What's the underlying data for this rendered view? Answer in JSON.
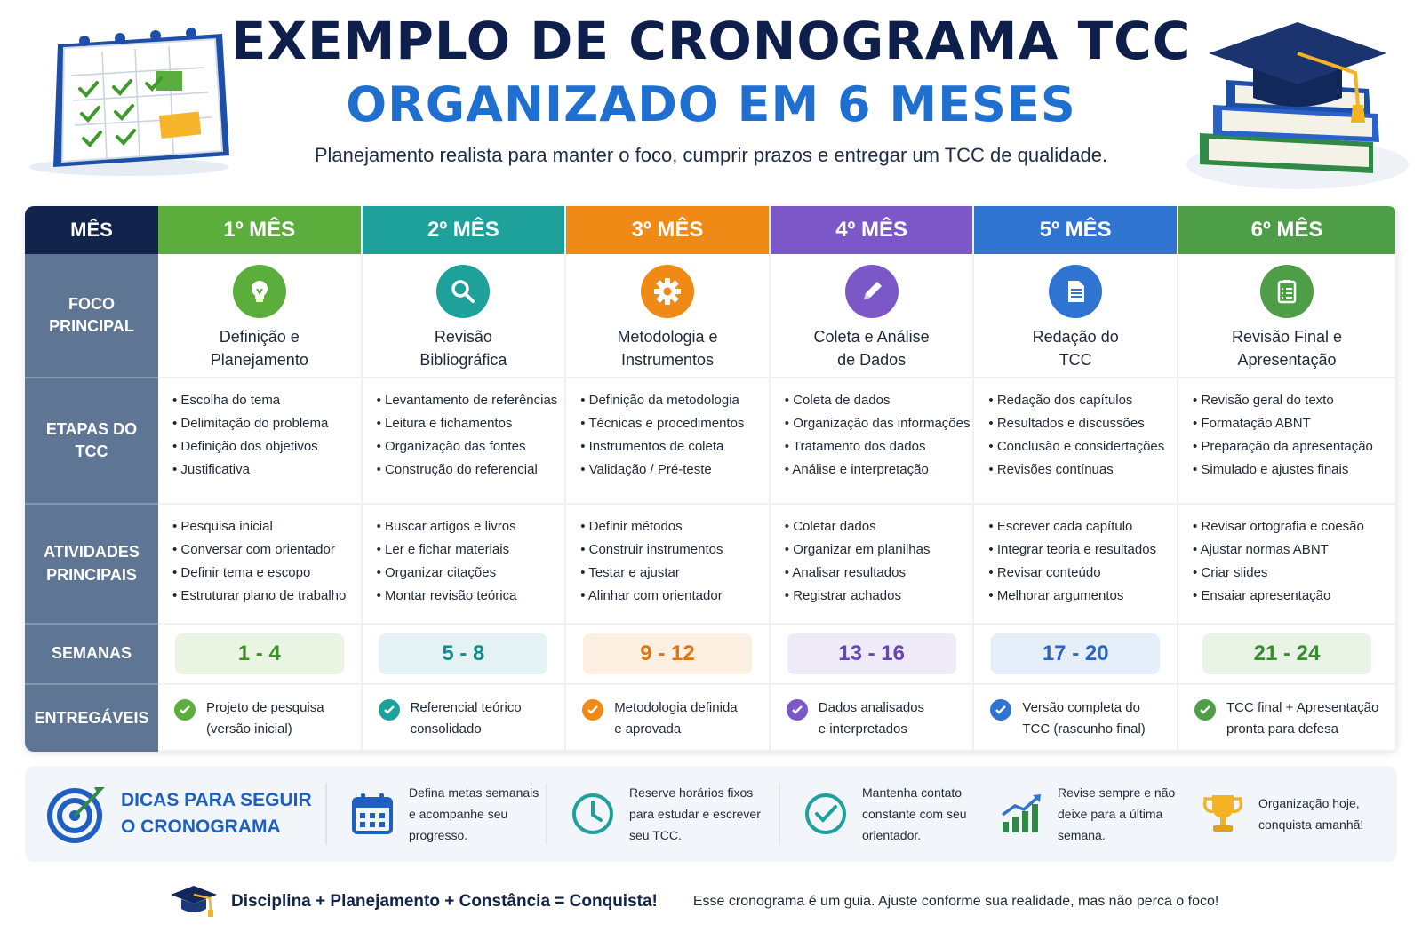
{
  "header": {
    "title": "EXEMPLO DE CRONOGRAMA TCC",
    "subtitle": "ORGANIZADO EM 6 MESES",
    "description": "Planejamento realista para manter o foco, cumprir prazos e entregar um TCC de qualidade."
  },
  "row_labels": {
    "month": "MÊS",
    "focus": "FOCO PRINCIPAL",
    "steps": "ETAPAS DO TCC",
    "activities": "ATIVIDADES PRINCIPAIS",
    "weeks": "SEMANAS",
    "deliverables": "ENTREGÁVEIS"
  },
  "months": [
    {
      "label": "1º MÊS",
      "color": "#5cae3c",
      "pill_bg": "#e9f4e3",
      "pill_color": "#3f8f26",
      "icon": "lightbulb-icon",
      "focus": [
        "Definição e",
        "Planejamento"
      ],
      "steps": [
        "Escolha do tema",
        "Delimitação do problema",
        "Definição dos objetivos",
        "Justificativa"
      ],
      "activities": [
        "Pesquisa inicial",
        "Conversar com orientador",
        "Definir tema e escopo",
        "Estruturar plano de trabalho"
      ],
      "weeks": "1 - 4",
      "deliverable": [
        "Projeto de pesquisa",
        "(versão inicial)"
      ]
    },
    {
      "label": "2º MÊS",
      "color": "#1ea19a",
      "pill_bg": "#e4f2f4",
      "pill_color": "#148a8a",
      "icon": "magnifier-icon",
      "focus": [
        "Revisão",
        "Bibliográfica"
      ],
      "steps": [
        "Levantamento de referências",
        "Leitura e fichamentos",
        "Organização das fontes",
        "Construção do referencial"
      ],
      "activities": [
        "Buscar artigos e livros",
        "Ler e fichar materiais",
        "Organizar citações",
        "Montar revisão teórica"
      ],
      "weeks": "5 - 8",
      "deliverable": [
        "Referencial teórico",
        "consolidado"
      ]
    },
    {
      "label": "3º MÊS",
      "color": "#f08a16",
      "pill_bg": "#fdefe2",
      "pill_color": "#e0730a",
      "icon": "gear-icon",
      "focus": [
        "Metodologia e",
        "Instrumentos"
      ],
      "steps": [
        "Definição da metodologia",
        "Técnicas e procedimentos",
        "Instrumentos de coleta",
        "Validação / Pré-teste"
      ],
      "activities": [
        "Definir métodos",
        "Construir instrumentos",
        "Testar e ajustar",
        "Alinhar com orientador"
      ],
      "weeks": "9 - 12",
      "deliverable": [
        "Metodologia definida",
        "e aprovada"
      ]
    },
    {
      "label": "4º MÊS",
      "color": "#7b57c8",
      "pill_bg": "#eeeaf8",
      "pill_color": "#6a45b8",
      "icon": "pencil-icon",
      "focus": [
        "Coleta e Análise",
        "de Dados"
      ],
      "steps": [
        "Coleta de dados",
        "Organização das informações",
        "Tratamento dos dados",
        "Análise e interpretação"
      ],
      "activities": [
        "Coletar dados",
        "Organizar em planilhas",
        "Analisar resultados",
        "Registrar achados"
      ],
      "weeks": "13 - 16",
      "deliverable": [
        "Dados analisados",
        "e interpretados"
      ]
    },
    {
      "label": "5º MÊS",
      "color": "#2f74d0",
      "pill_bg": "#e6eef9",
      "pill_color": "#2a66c0",
      "icon": "document-icon",
      "focus": [
        "Redação do",
        "TCC"
      ],
      "steps": [
        "Redação dos capítulos",
        "Resultados e discussões",
        "Conclusão e considertações",
        "Revisões contínuas"
      ],
      "activities": [
        "Escrever cada capítulo",
        "Integrar teoria e resultados",
        "Revisar conteúdo",
        "Melhorar argumentos"
      ],
      "weeks": "17 - 20",
      "deliverable": [
        "Versão completa do",
        "TCC (rascunho final)"
      ]
    },
    {
      "label": "6º MÊS",
      "color": "#4d9e47",
      "pill_bg": "#e8f3e5",
      "pill_color": "#3a8a33",
      "icon": "clipboard-checklist-icon",
      "focus": [
        "Revisão Final e",
        "Apresentação"
      ],
      "steps": [
        "Revisão geral do texto",
        "Formatação ABNT",
        "Preparação da apresentação",
        "Simulado e ajustes finais"
      ],
      "activities": [
        "Revisar ortografia e coesão",
        "Ajustar normas ABNT",
        "Criar slides",
        "Ensaiar apresentação"
      ],
      "weeks": "21 - 24",
      "deliverable": [
        "TCC final + Apresentação",
        "pronta para defesa"
      ]
    }
  ],
  "tips": {
    "title": [
      "DICAS PARA SEGUIR",
      "O CRONOGRAMA"
    ],
    "title_icon": "target-arrow-icon",
    "items": [
      {
        "icon": "calendar-icon",
        "text": [
          "Defina metas semanais",
          "e acompanhe seu",
          "progresso."
        ]
      },
      {
        "icon": "clock-icon",
        "text": [
          "Reserve horários fixos",
          "para estudar e escrever",
          "seu TCC."
        ]
      },
      {
        "icon": "check-circle-icon",
        "text": [
          "Mantenha contato",
          "constante com seu",
          "orientador."
        ]
      },
      {
        "icon": "growth-chart-icon",
        "text": [
          "Revise sempre e não",
          "deixe para a última",
          "semana."
        ]
      },
      {
        "icon": "trophy-icon",
        "text": [
          "Organização hoje,",
          "conquista amanhã!"
        ]
      }
    ]
  },
  "footer": {
    "icon": "graduation-cap-icon",
    "motto": "Disciplina + Planejamento + Constância = Conquista!",
    "note": "Esse cronograma é um guia. Ajuste conforme sua realidade, mas não perca o foco!"
  }
}
